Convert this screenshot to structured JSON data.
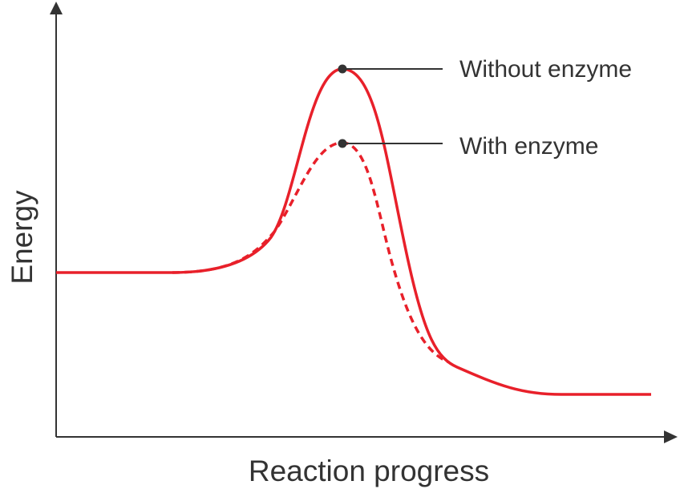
{
  "diagram": {
    "x_axis_label": "Reaction progress",
    "y_axis_label": "Energy",
    "curves": [
      {
        "label": "Without enzyme",
        "style": "solid"
      },
      {
        "label": "With enzyme",
        "style": "dashed"
      }
    ],
    "colors": {
      "curve": "#e8202a",
      "axis": "#333333",
      "text": "#333333"
    }
  }
}
